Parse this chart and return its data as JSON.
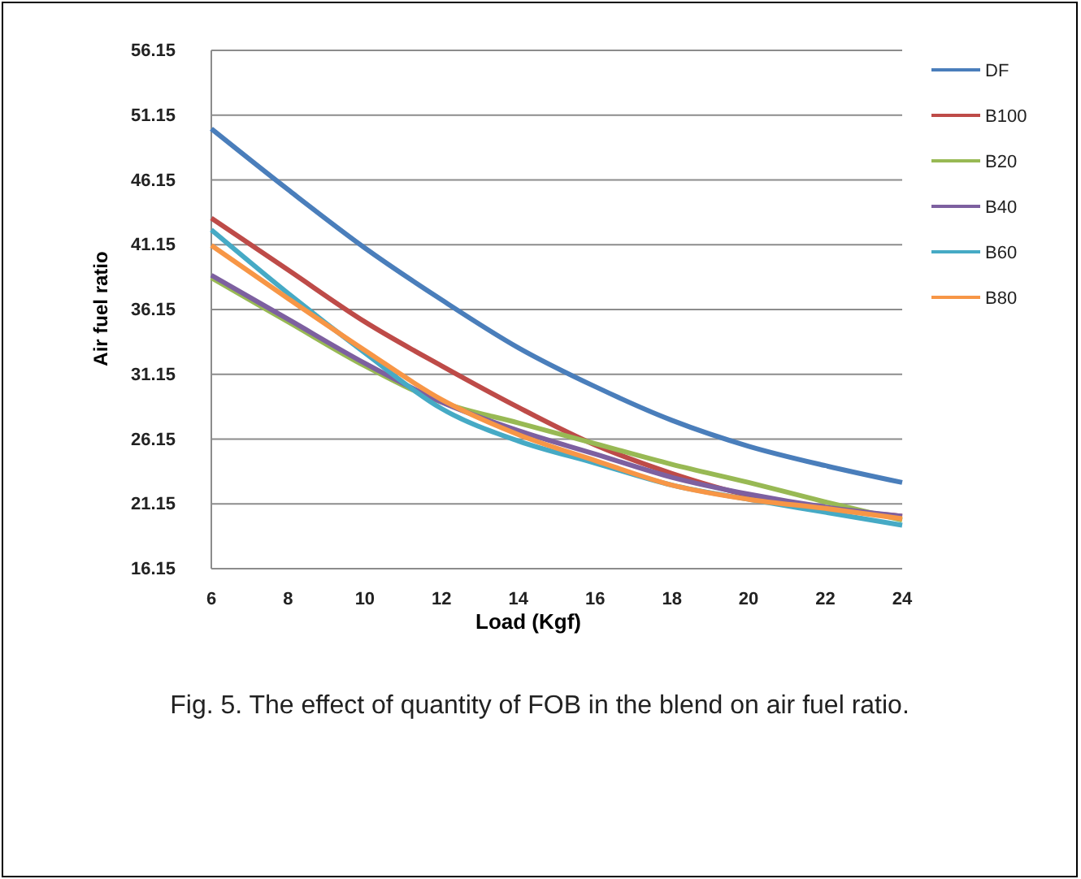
{
  "chart_data": {
    "type": "line",
    "xlabel": "Load (Kgf)",
    "ylabel": "Air fuel ratio",
    "x": [
      6,
      8,
      10,
      12,
      14,
      16,
      18,
      20,
      22,
      24
    ],
    "series": [
      {
        "name": "DF",
        "color": "#4a7ebb",
        "values": [
          50.1,
          45.4,
          40.9,
          36.9,
          33.2,
          30.2,
          27.6,
          25.6,
          24.1,
          22.8
        ]
      },
      {
        "name": "B100",
        "color": "#be4b48",
        "values": [
          43.2,
          39.2,
          35.2,
          31.8,
          28.6,
          25.7,
          23.5,
          21.8,
          20.8,
          20.2
        ]
      },
      {
        "name": "B20",
        "color": "#98b954",
        "values": [
          38.6,
          35.2,
          31.8,
          29.0,
          27.4,
          25.8,
          24.2,
          22.8,
          21.3,
          19.9
        ]
      },
      {
        "name": "B40",
        "color": "#7d60a0",
        "values": [
          38.8,
          35.4,
          32.0,
          29.0,
          26.8,
          25.0,
          23.2,
          21.9,
          20.9,
          20.2
        ]
      },
      {
        "name": "B60",
        "color": "#46aac5",
        "values": [
          42.3,
          37.4,
          32.8,
          28.5,
          26.0,
          24.3,
          22.6,
          21.5,
          20.5,
          19.5
        ]
      },
      {
        "name": "B80",
        "color": "#f79646",
        "values": [
          41.1,
          37.0,
          33.0,
          29.2,
          26.5,
          24.5,
          22.6,
          21.5,
          20.8,
          20.0
        ]
      }
    ],
    "xlim": [
      6,
      24
    ],
    "xticks": [
      6,
      8,
      10,
      12,
      14,
      16,
      18,
      20,
      22,
      24
    ],
    "ylim": [
      16.15,
      56.15
    ],
    "yticks": [
      16.15,
      21.15,
      26.15,
      31.15,
      36.15,
      41.15,
      46.15,
      51.15,
      56.15
    ],
    "grid": "y",
    "legend": "right",
    "marker": "none",
    "line_style": "solid",
    "annotations": [
      "Fig. 5. The effect of quantity of FOB in the blend on air fuel ratio."
    ]
  }
}
